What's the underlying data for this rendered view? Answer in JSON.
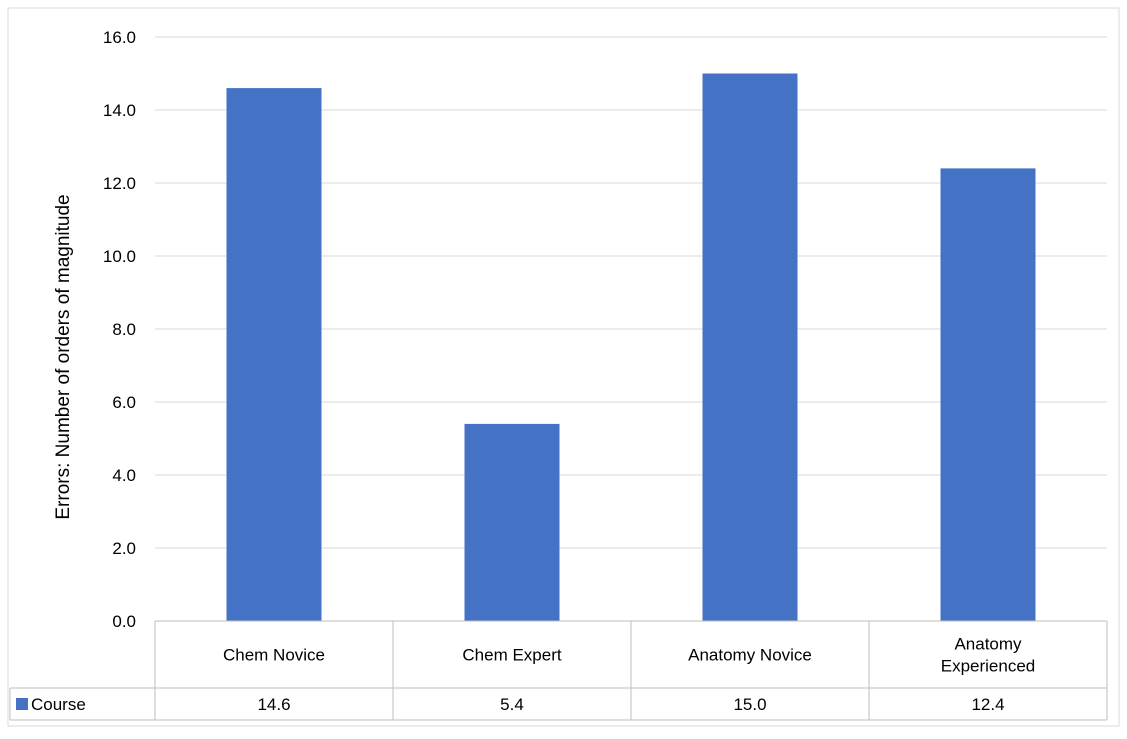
{
  "chart_data": {
    "type": "bar",
    "categories": [
      "Chem Novice",
      "Chem Expert",
      "Anatomy Novice",
      "Anatomy Experienced"
    ],
    "series": [
      {
        "name": "Course",
        "values": [
          14.6,
          5.4,
          15.0,
          12.4
        ],
        "color": "#4472C4"
      }
    ],
    "data_labels": [
      "14.6",
      "5.4",
      "15.0",
      "12.4"
    ],
    "ylabel": "Errors: Number of orders of magnitude",
    "xlabel": "",
    "ylim": [
      0,
      16
    ],
    "yticks": [
      "0.0",
      "2.0",
      "4.0",
      "6.0",
      "8.0",
      "10.0",
      "12.0",
      "14.0",
      "16.0"
    ],
    "grid": true,
    "legend": "data-table",
    "colors": {
      "bar": "#4472C4",
      "grid": "#D9D9D9",
      "table_border": "#BFBFBF"
    }
  }
}
